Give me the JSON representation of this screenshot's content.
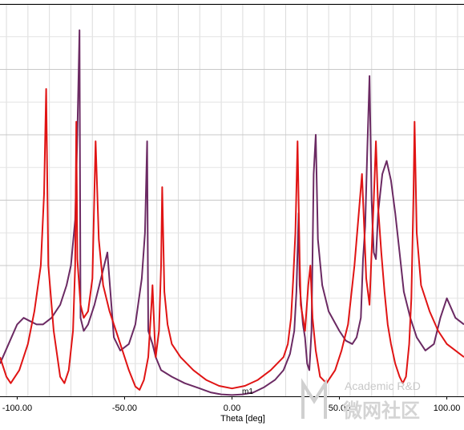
{
  "chart_data": {
    "type": "line",
    "xlabel": "Theta [deg]",
    "ylabel": "",
    "xlim": [
      -108,
      108
    ],
    "ylim": [
      0,
      60
    ],
    "x_ticks": [
      -100,
      -50,
      0,
      50,
      100
    ],
    "x_tick_labels": [
      "-100.00",
      "-50.00",
      "0.00",
      "50.00",
      "100.00"
    ],
    "grid": true,
    "marker": {
      "label": "m1",
      "x": 0,
      "y": 1.2
    },
    "series": [
      {
        "color": "#6b2a63",
        "points": [
          [
            -108,
            5
          ],
          [
            -104,
            8
          ],
          [
            -100,
            11
          ],
          [
            -97,
            12
          ],
          [
            -94,
            11.5
          ],
          [
            -91,
            11
          ],
          [
            -88,
            11
          ],
          [
            -84,
            12
          ],
          [
            -80,
            14
          ],
          [
            -77,
            17
          ],
          [
            -75,
            20
          ],
          [
            -73,
            27
          ],
          [
            -72,
            40
          ],
          [
            -71,
            56
          ],
          [
            -70.5,
            12
          ],
          [
            -69,
            10
          ],
          [
            -67,
            11
          ],
          [
            -64,
            14
          ],
          [
            -61,
            18
          ],
          [
            -58,
            22
          ],
          [
            -55,
            9
          ],
          [
            -52,
            7
          ],
          [
            -48,
            8
          ],
          [
            -45,
            11
          ],
          [
            -42,
            18
          ],
          [
            -40.5,
            25
          ],
          [
            -39.5,
            39
          ],
          [
            -39,
            10
          ],
          [
            -37,
            8
          ],
          [
            -35.5,
            6
          ],
          [
            -33,
            4
          ],
          [
            -28,
            3
          ],
          [
            -22,
            2
          ],
          [
            -15,
            1.2
          ],
          [
            -10,
            0.6
          ],
          [
            -5,
            0.3
          ],
          [
            0,
            0.2
          ],
          [
            5,
            0.3
          ],
          [
            10,
            0.6
          ],
          [
            15,
            1.4
          ],
          [
            20,
            2.5
          ],
          [
            24,
            4
          ],
          [
            27,
            6.5
          ],
          [
            29,
            10
          ],
          [
            30,
            16
          ],
          [
            31,
            28
          ],
          [
            31.5,
            17
          ],
          [
            33,
            11
          ],
          [
            34,
            9
          ],
          [
            35,
            5
          ],
          [
            36,
            4
          ],
          [
            37,
            10
          ],
          [
            38,
            34
          ],
          [
            39,
            40
          ],
          [
            40,
            24
          ],
          [
            42,
            17
          ],
          [
            45,
            13
          ],
          [
            50,
            10
          ],
          [
            53,
            8.5
          ],
          [
            56,
            8
          ],
          [
            58,
            9
          ],
          [
            60,
            12
          ],
          [
            61,
            21
          ],
          [
            62,
            26
          ],
          [
            63,
            38
          ],
          [
            64,
            49
          ],
          [
            65,
            30
          ],
          [
            66,
            22
          ],
          [
            67,
            21
          ],
          [
            68,
            28
          ],
          [
            70,
            34
          ],
          [
            72,
            36
          ],
          [
            74,
            33
          ],
          [
            76,
            28
          ],
          [
            78,
            22
          ],
          [
            80,
            16
          ],
          [
            83,
            12
          ],
          [
            86,
            9
          ],
          [
            90,
            7
          ],
          [
            94,
            8
          ],
          [
            97,
            12
          ],
          [
            100,
            15
          ],
          [
            104,
            12
          ],
          [
            108,
            11
          ]
        ]
      },
      {
        "color": "#e01414",
        "points": [
          [
            -108,
            6
          ],
          [
            -105,
            3
          ],
          [
            -103,
            2
          ],
          [
            -99,
            4
          ],
          [
            -95,
            8
          ],
          [
            -92,
            13
          ],
          [
            -89,
            20
          ],
          [
            -87.5,
            31
          ],
          [
            -86.5,
            47
          ],
          [
            -85.5,
            20
          ],
          [
            -83,
            10
          ],
          [
            -80,
            3
          ],
          [
            -78,
            2
          ],
          [
            -76,
            4
          ],
          [
            -74,
            10
          ],
          [
            -73,
            20
          ],
          [
            -72.5,
            42
          ],
          [
            -72,
            21
          ],
          [
            -70.5,
            14
          ],
          [
            -69,
            12
          ],
          [
            -67,
            13
          ],
          [
            -65,
            18
          ],
          [
            -63.5,
            39
          ],
          [
            -62,
            24
          ],
          [
            -60,
            17
          ],
          [
            -57,
            13
          ],
          [
            -54,
            10
          ],
          [
            -51,
            7
          ],
          [
            -48,
            4
          ],
          [
            -45,
            1.5
          ],
          [
            -43,
            1
          ],
          [
            -41,
            2.5
          ],
          [
            -39,
            6
          ],
          [
            -37.5,
            14
          ],
          [
            -37,
            17
          ],
          [
            -36,
            9
          ],
          [
            -35.5,
            6
          ],
          [
            -34,
            10
          ],
          [
            -33,
            20
          ],
          [
            -32.5,
            32
          ],
          [
            -31.5,
            16
          ],
          [
            -30,
            11
          ],
          [
            -28,
            8
          ],
          [
            -24,
            6
          ],
          [
            -18,
            4
          ],
          [
            -12,
            2.5
          ],
          [
            -6,
            1.6
          ],
          [
            0,
            1.2
          ],
          [
            6,
            1.6
          ],
          [
            12,
            2.5
          ],
          [
            18,
            4
          ],
          [
            24,
            6
          ],
          [
            26,
            8
          ],
          [
            27.5,
            12
          ],
          [
            28.5,
            18
          ],
          [
            29.5,
            25
          ],
          [
            30.5,
            39
          ],
          [
            31.5,
            21
          ],
          [
            32,
            14
          ],
          [
            33,
            12
          ],
          [
            34,
            10
          ],
          [
            35.5,
            17
          ],
          [
            36.5,
            20
          ],
          [
            37.5,
            12
          ],
          [
            39,
            7
          ],
          [
            41,
            3
          ],
          [
            44,
            2
          ],
          [
            48,
            4
          ],
          [
            51,
            7
          ],
          [
            54,
            11
          ],
          [
            57,
            20
          ],
          [
            59,
            28
          ],
          [
            60.5,
            34
          ],
          [
            61.5,
            26
          ],
          [
            62.5,
            18
          ],
          [
            64,
            14
          ],
          [
            65,
            22
          ],
          [
            66,
            30
          ],
          [
            67,
            39
          ],
          [
            68,
            29
          ],
          [
            69.5,
            22
          ],
          [
            71,
            16
          ],
          [
            72.5,
            11
          ],
          [
            74,
            8
          ],
          [
            76,
            5
          ],
          [
            78,
            3
          ],
          [
            79.5,
            2
          ],
          [
            81,
            3
          ],
          [
            82.5,
            8
          ],
          [
            83.5,
            15
          ],
          [
            84.5,
            31
          ],
          [
            85,
            42
          ],
          [
            86,
            25
          ],
          [
            88,
            17
          ],
          [
            92,
            13
          ],
          [
            96,
            10
          ],
          [
            100,
            8
          ],
          [
            104,
            7
          ],
          [
            108,
            6
          ]
        ]
      }
    ]
  },
  "watermark": {
    "line1": "Academic R&D",
    "line2": "微网社区"
  }
}
